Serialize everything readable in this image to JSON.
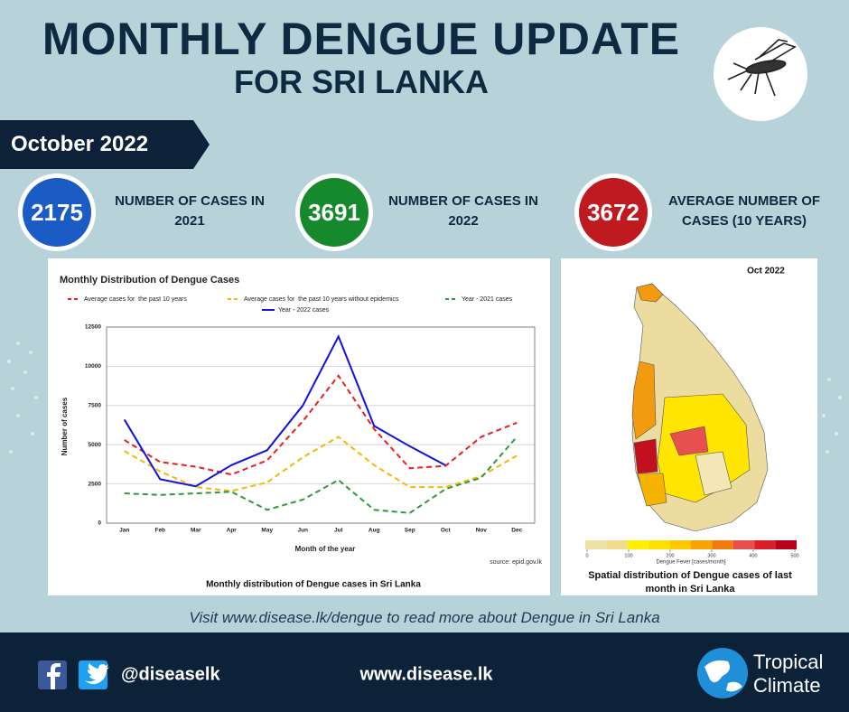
{
  "header": {
    "title": "MONTHLY DENGUE UPDATE",
    "subtitle": "FOR SRI LANKA",
    "period": "October 2022"
  },
  "stats": [
    {
      "value": 2175,
      "label": "NUMBER OF CASES IN 2021",
      "color": "#1a5bc4"
    },
    {
      "value": 3691,
      "label": "NUMBER OF CASES IN 2022",
      "color": "#15892b"
    },
    {
      "value": 3672,
      "label": "AVERAGE NUMBER OF CASES (10 YEARS)",
      "color": "#bf1a1f"
    }
  ],
  "chart_data": {
    "type": "line",
    "title": "Monthly Distribution of Dengue Cases",
    "x_label": "Month of the year",
    "y_label": "Number of cases",
    "source": "source: epid.gov.lk",
    "caption": "Monthly  distribution of Dengue cases in Sri Lanka",
    "categories": [
      "Jan",
      "Feb",
      "Mar",
      "Apr",
      "May",
      "Jun",
      "Jul",
      "Aug",
      "Sep",
      "Oct",
      "Nov",
      "Dec"
    ],
    "series": [
      {
        "name": "Average cases for  the past 10 years",
        "color": "#e8211d",
        "dashed": true,
        "values": [
          5300,
          3900,
          3600,
          3100,
          4000,
          6500,
          9400,
          6000,
          3500,
          3650,
          5500,
          6400
        ]
      },
      {
        "name": "Average cases for  the past 10 years without epidemics",
        "color": "#f5b800",
        "dashed": true,
        "values": [
          4600,
          3300,
          2300,
          2050,
          2600,
          4200,
          5500,
          3700,
          2300,
          2300,
          3000,
          4300
        ]
      },
      {
        "name": "Year - 2021 cases",
        "color": "#2e9a3c",
        "dashed": true,
        "values": [
          1900,
          1800,
          1900,
          2000,
          850,
          1500,
          2750,
          850,
          650,
          2175,
          2900,
          5500
        ]
      },
      {
        "name": "Year - 2022 cases",
        "color": "#1010e0",
        "dashed": false,
        "values": [
          6600,
          2800,
          2350,
          3700,
          4650,
          7500,
          11900,
          6200,
          4900,
          3691,
          null,
          null
        ]
      }
    ],
    "ylim": [
      0,
      12500
    ],
    "yticks": [
      0,
      2500,
      5000,
      7500,
      10000,
      12500
    ],
    "grid": true
  },
  "map": {
    "title": "Oct 2022",
    "scale_label": "Dengue Fever [cases/month]",
    "scale_lim": [
      0,
      500
    ],
    "scale_ticks": [
      0,
      100,
      200,
      300,
      400,
      500
    ],
    "caption": "Spatial distribution of Dengue cases of last month in Sri Lanka"
  },
  "note": "Visit www.disease.lk/dengue to read more about Dengue in Sri Lanka",
  "footer": {
    "handle": "@diseaselk",
    "website": "www.disease.lk",
    "brand_line1": "Tropical",
    "brand_line2": "Climate"
  }
}
